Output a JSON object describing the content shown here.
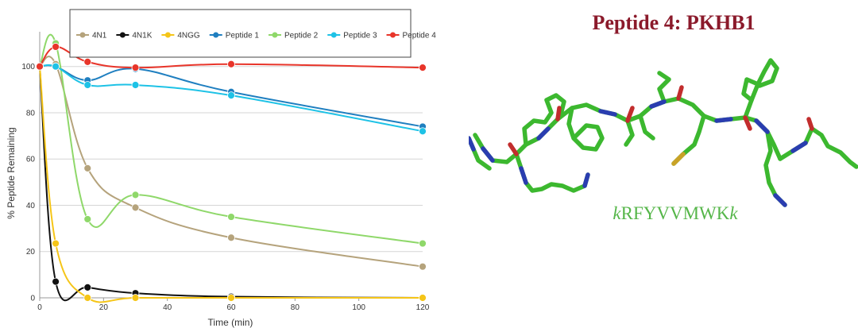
{
  "chart_data": {
    "type": "line",
    "title": "",
    "xlabel": "Time (min)",
    "ylabel": "% Peptide Remaining",
    "xlim": [
      0,
      120
    ],
    "ylim": [
      0,
      115
    ],
    "xticks": [
      0,
      20,
      40,
      60,
      80,
      100,
      120
    ],
    "yticks": [
      0,
      20,
      40,
      60,
      80,
      100
    ],
    "grid": "horizontal",
    "legend_position": "top",
    "series": [
      {
        "name": "4N1",
        "color": "#b5a37c",
        "x": [
          0,
          5,
          15,
          30,
          60,
          120
        ],
        "y": [
          100,
          101,
          56,
          39,
          26,
          13.5
        ]
      },
      {
        "name": "4N1K",
        "color": "#111111",
        "x": [
          0,
          5,
          15,
          30,
          60,
          120
        ],
        "y": [
          100,
          7,
          4.5,
          2,
          0.5,
          0
        ]
      },
      {
        "name": "4NGG",
        "color": "#f5c518",
        "x": [
          0,
          5,
          15,
          30,
          60,
          120
        ],
        "y": [
          100,
          23.5,
          0,
          0,
          0,
          0
        ]
      },
      {
        "name": "Peptide 1",
        "color": "#1f7fc0",
        "x": [
          0,
          5,
          15,
          30,
          60,
          120
        ],
        "y": [
          100,
          100,
          94,
          99,
          89,
          74
        ]
      },
      {
        "name": "Peptide 2",
        "color": "#8fd86a",
        "x": [
          0,
          5,
          15,
          30,
          60,
          120
        ],
        "y": [
          100,
          110,
          34,
          44.5,
          35,
          23.5
        ]
      },
      {
        "name": "Peptide 3",
        "color": "#1ec2e6",
        "x": [
          0,
          5,
          15,
          30,
          60,
          120
        ],
        "y": [
          100,
          100,
          92,
          92,
          87.5,
          72
        ]
      },
      {
        "name": "Peptide 4",
        "color": "#e8352a",
        "x": [
          0,
          5,
          15,
          30,
          60,
          120
        ],
        "y": [
          100,
          108.5,
          102,
          99.5,
          101,
          99.5
        ]
      }
    ]
  },
  "structure": {
    "title": "Peptide 4: PKHB1",
    "sequence_prefix": "k",
    "sequence_core": "RFYVVMWK",
    "sequence_suffix": "k"
  },
  "colors": {
    "title": "#8b1a2b",
    "sequence": "#55b649",
    "carbon": "#3cb82f",
    "nitrogen": "#2a3db0",
    "oxygen": "#c22d2d",
    "sulfur": "#c9a227"
  }
}
